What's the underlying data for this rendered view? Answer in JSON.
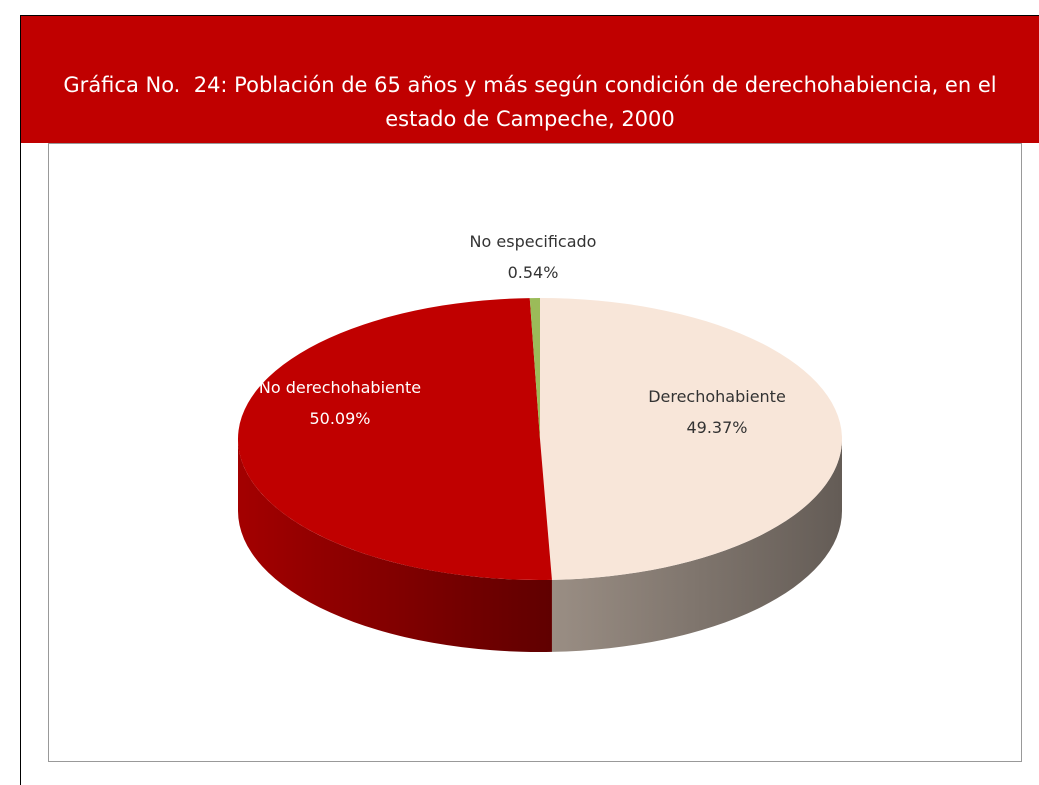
{
  "chart_data": {
    "type": "pie",
    "title": "Gráfica No.  24: Población de 65 años y más según condición de derechohabiencia, en el estado de Campeche, 2000",
    "categories": [
      "Derechohabiente",
      "No derechohabiente",
      "No especificado"
    ],
    "values": [
      49.37,
      50.09,
      0.54
    ],
    "value_labels": [
      "49.37%",
      "50.09%",
      "0.54%"
    ],
    "colors": [
      "#f8e6d9",
      "#c00000",
      "#9bbb59"
    ]
  }
}
